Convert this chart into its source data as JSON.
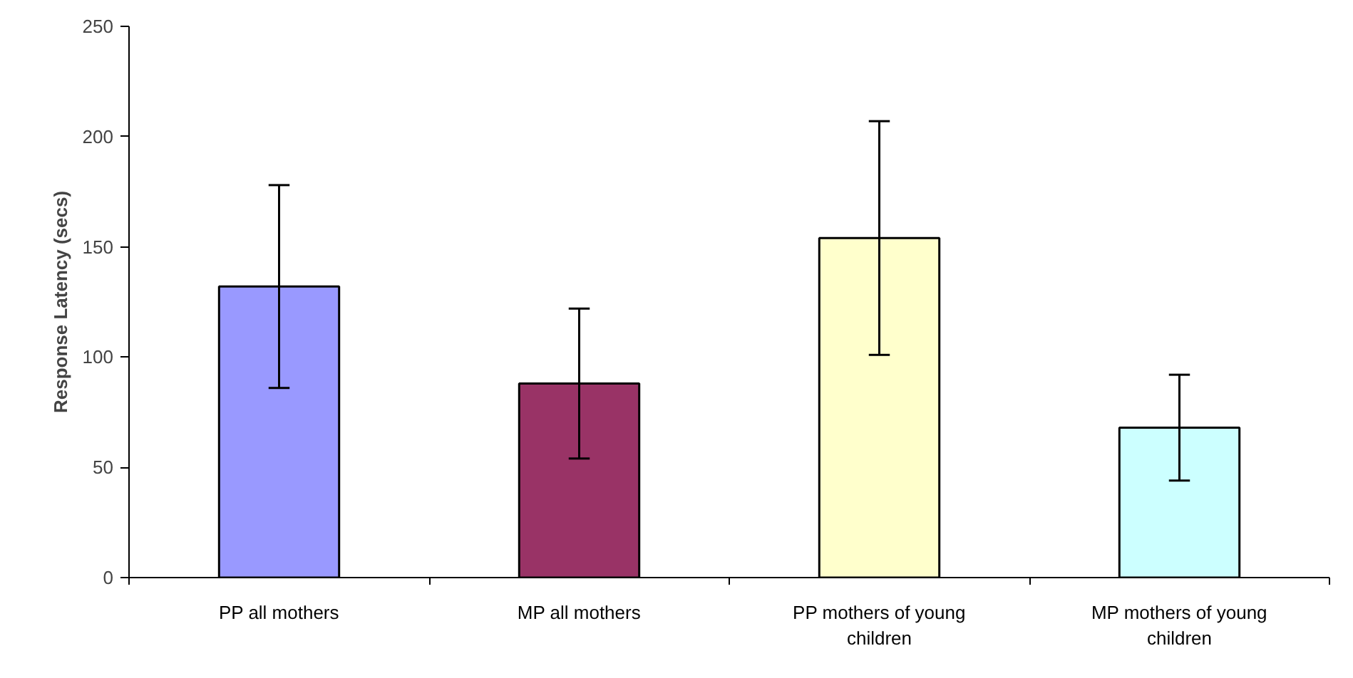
{
  "chart_data": {
    "type": "bar",
    "categories": [
      "PP all mothers",
      "MP all mothers",
      "PP mothers of young children",
      "MP mothers of young children"
    ],
    "values": [
      132,
      88,
      154,
      68
    ],
    "colors": [
      "#9999ff",
      "#993366",
      "#ffffcc",
      "#ccffff"
    ],
    "errors": [
      [
        86,
        178
      ],
      [
        54,
        122
      ],
      [
        101,
        207
      ],
      [
        44,
        92
      ]
    ],
    "ylabel": "Response Latency (secs)",
    "ylim": [
      0,
      250
    ],
    "yticks": [
      0,
      50,
      100,
      150,
      200,
      250
    ],
    "grid": false
  }
}
